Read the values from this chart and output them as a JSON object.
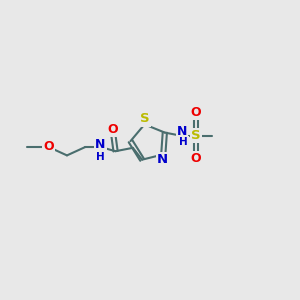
{
  "background_color": "#e8e8e8",
  "bond_color": "#4a6e6e",
  "bond_width": 1.5,
  "atom_colors": {
    "C": "#4a6e6e",
    "N": "#0000cc",
    "O": "#ee0000",
    "S_thiazole": "#bbbb00",
    "S_sulfonyl": "#bbbb00",
    "H": "#0000cc"
  },
  "font_size": 8.5,
  "fig_size": [
    3.0,
    3.0
  ],
  "dpi": 100,
  "xlim": [
    0,
    10
  ],
  "ylim": [
    0,
    10
  ]
}
